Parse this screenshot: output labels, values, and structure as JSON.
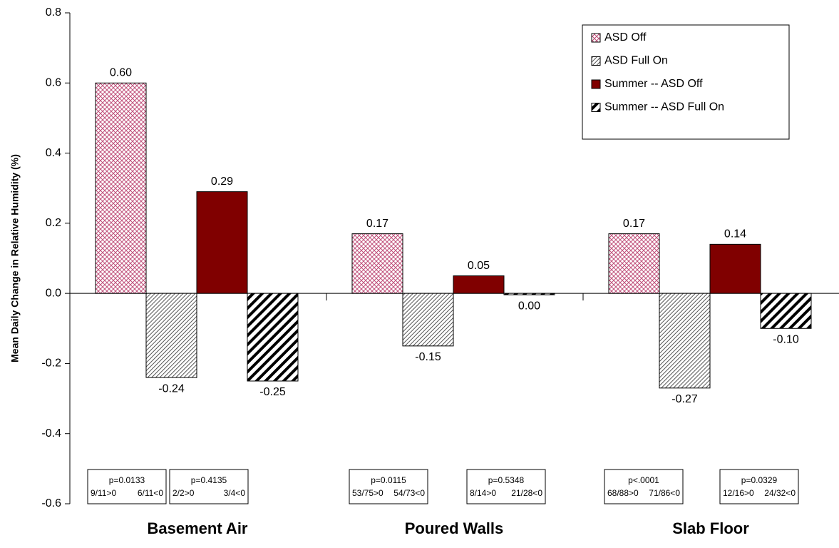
{
  "chart_data": {
    "type": "bar",
    "y_label": "Mean Daily Change in Relative Humidity (%)",
    "categories": [
      "Basement Air",
      "Poured Walls",
      "Slab Floor"
    ],
    "series": [
      {
        "name": "ASD Off",
        "color": "#c0507a",
        "pattern": "crosshatch",
        "values": [
          0.6,
          0.17,
          0.17
        ],
        "value_labels": [
          "0.60",
          "0.17",
          "0.17"
        ]
      },
      {
        "name": "ASD Full On",
        "color": "#555555",
        "pattern": "hatch",
        "values": [
          -0.24,
          -0.15,
          -0.27
        ],
        "value_labels": [
          "-0.24",
          "-0.15",
          "-0.27"
        ]
      },
      {
        "name": "Summer -- ASD Off",
        "color": "#800000",
        "pattern": "solid",
        "values": [
          0.29,
          0.05,
          0.14
        ],
        "value_labels": [
          "0.29",
          "0.05",
          "0.14"
        ]
      },
      {
        "name": "Summer -- ASD Full On",
        "color": "#000000",
        "pattern": "bold-hatch",
        "values": [
          -0.25,
          -0.004,
          -0.1
        ],
        "value_labels": [
          "-0.25",
          "0.00",
          "-0.10"
        ]
      }
    ],
    "ylim": [
      -0.6,
      0.8
    ],
    "yticks": [
      -0.6,
      -0.4,
      -0.2,
      {
        "value": 0,
        "label": "0.0"
      },
      0.2,
      0.4,
      0.6,
      0.8
    ],
    "grid": false,
    "legend": "upper right",
    "annotations": [
      [
        {
          "p": "p=0.0133",
          "pos": "9/11>0",
          "neg": "6/11<0"
        },
        {
          "p": "p=0.4135",
          "pos": "2/2>0",
          "neg": "3/4<0"
        }
      ],
      [
        {
          "p": "p=0.0115",
          "pos": "53/75>0",
          "neg": "54/73<0"
        },
        {
          "p": "p=0.5348",
          "pos": "8/14>0",
          "neg": "21/28<0"
        }
      ],
      [
        {
          "p": "p<.0001",
          "pos": "68/88>0",
          "neg": "71/86<0"
        },
        {
          "p": "p=0.0329",
          "pos": "12/16>0",
          "neg": "24/32<0"
        }
      ]
    ]
  }
}
